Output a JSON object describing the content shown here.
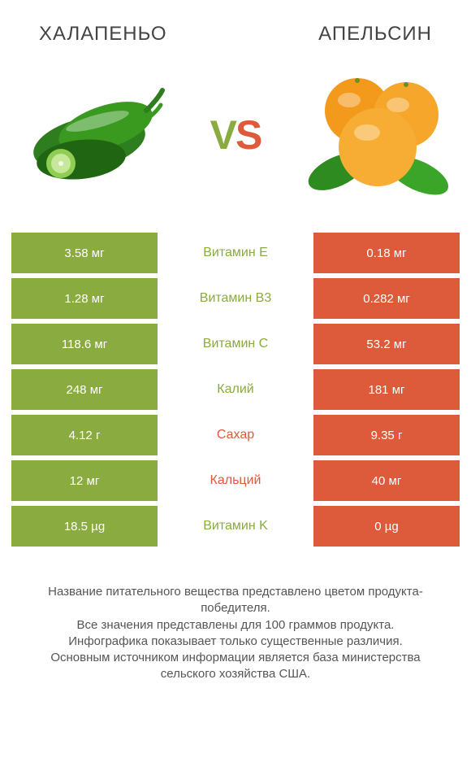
{
  "left_title": "ХАЛАПЕНЬО",
  "right_title": "АПЕЛЬСИН",
  "vs": {
    "v": "V",
    "s": "S"
  },
  "colors": {
    "green": "#8aab3f",
    "orange": "#dd5a3a",
    "text": "#555555"
  },
  "table": {
    "rows": [
      {
        "left": "3.58 мг",
        "label": "Витамин E",
        "winner": "green",
        "right": "0.18 мг"
      },
      {
        "left": "1.28 мг",
        "label": "Витамин B3",
        "winner": "green",
        "right": "0.282 мг"
      },
      {
        "left": "118.6 мг",
        "label": "Витамин C",
        "winner": "green",
        "right": "53.2 мг"
      },
      {
        "left": "248 мг",
        "label": "Калий",
        "winner": "green",
        "right": "181 мг"
      },
      {
        "left": "4.12 г",
        "label": "Сахар",
        "winner": "orange",
        "right": "9.35 г"
      },
      {
        "left": "12 мг",
        "label": "Кальций",
        "winner": "orange",
        "right": "40 мг"
      },
      {
        "left": "18.5 µg",
        "label": "Витамин K",
        "winner": "green",
        "right": "0 µg"
      }
    ]
  },
  "footer_lines": [
    "Название питательного вещества представлено цветом продукта-победителя.",
    "Все значения представлены для 100 граммов продукта.",
    "Инфографика показывает только существенные различия.",
    "Основным источником информации является база министерства сельского хозяйства США."
  ]
}
